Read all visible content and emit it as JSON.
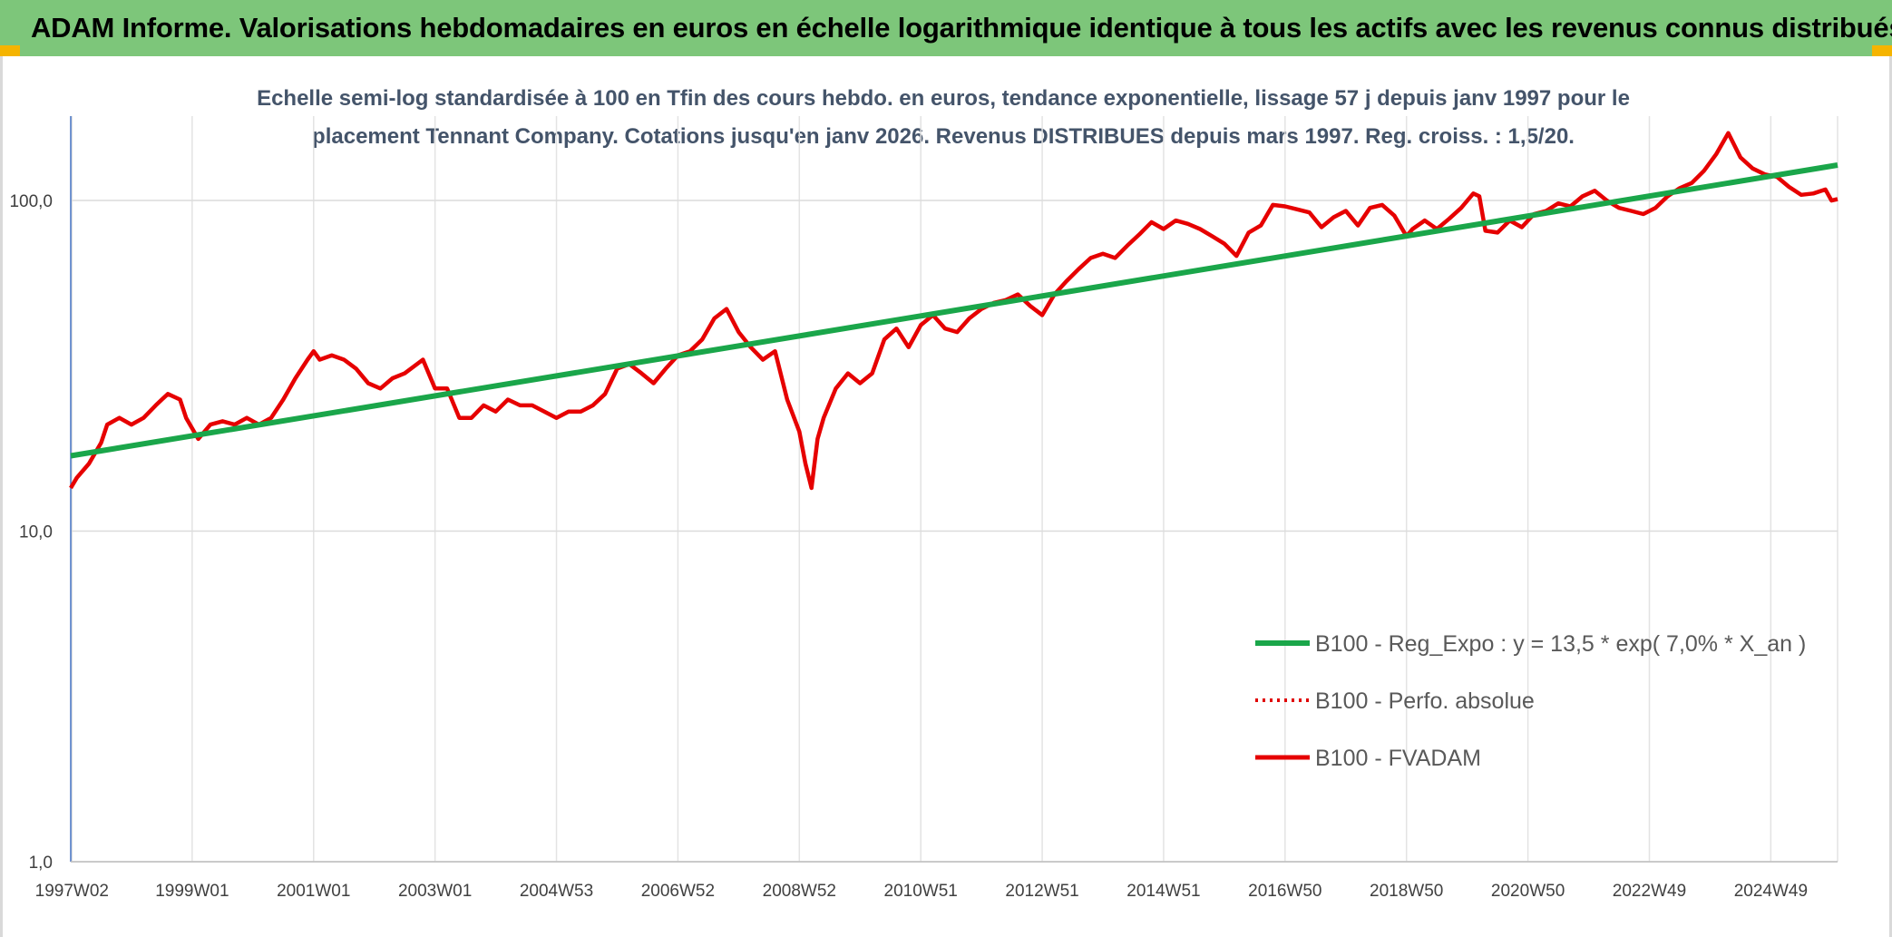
{
  "banner": {
    "title": "ADAM Informe. Valorisations hebdomadaires en euros en échelle logarithmique identique à tous les actifs avec les revenus connus distribués"
  },
  "chart_data": {
    "type": "line",
    "title_line1": "Echelle semi-log standardisée à 100 en Tfin des cours hebdo. en euros, tendance exponentielle, lissage 57 j depuis janv 1997 pour le",
    "title_line2": "placement Tennant Company. Cotations jusqu'en janv 2026. Revenus DISTRIBUES depuis mars 1997. Reg. croiss. : 1,5/20.",
    "y_scale": "log",
    "ylim": [
      1,
      180
    ],
    "y_ticks": [
      {
        "value": 100,
        "label": "100,0"
      },
      {
        "value": 10,
        "label": "10,0"
      },
      {
        "value": 1,
        "label": "1,0"
      }
    ],
    "x_range": [
      1997.0,
      2026.1
    ],
    "x_tick_labels": [
      "1997W02",
      "1999W01",
      "2001W01",
      "2003W01",
      "2004W53",
      "2006W52",
      "2008W52",
      "2010W51",
      "2012W51",
      "2014W51",
      "2016W50",
      "2018W50",
      "2020W50",
      "2022W49",
      "2024W49"
    ],
    "x_tick_years": [
      1997.02,
      1999.0,
      2001.0,
      2003.0,
      2005.0,
      2007.0,
      2009.0,
      2011.0,
      2013.0,
      2015.0,
      2017.0,
      2019.0,
      2021.0,
      2023.0,
      2025.0
    ],
    "grid": "vertical",
    "legend_position": "bottom-right",
    "series": [
      {
        "name": "B100 - Reg_Expo : y = 13,5 * exp( 7,0% *  X_an )",
        "color": "#1aa64a",
        "style": "solid",
        "x": [
          1997.0,
          2026.1
        ],
        "values": [
          16.9,
          128
        ]
      },
      {
        "name": "B100 - Perfo. absolue",
        "color": "#e00000",
        "style": "dotted",
        "x": [],
        "values": []
      },
      {
        "name": "B100 - FVADAM",
        "color": "#e60000",
        "style": "solid",
        "x": [
          1997.0,
          1997.1,
          1997.3,
          1997.5,
          1997.6,
          1997.8,
          1998.0,
          1998.2,
          1998.4,
          1998.5,
          1998.6,
          1998.8,
          1998.9,
          1999.1,
          1999.3,
          1999.5,
          1999.7,
          1999.9,
          2000.1,
          2000.3,
          2000.5,
          2000.7,
          2000.9,
          2001.0,
          2001.1,
          2001.3,
          2001.5,
          2001.7,
          2001.9,
          2002.1,
          2002.3,
          2002.5,
          2002.8,
          2003.0,
          2003.2,
          2003.4,
          2003.6,
          2003.8,
          2004.0,
          2004.2,
          2004.4,
          2004.6,
          2004.8,
          2005.0,
          2005.2,
          2005.4,
          2005.6,
          2005.8,
          2006.0,
          2006.2,
          2006.4,
          2006.6,
          2006.8,
          2007.0,
          2007.2,
          2007.4,
          2007.6,
          2007.8,
          2008.0,
          2008.2,
          2008.4,
          2008.6,
          2008.8,
          2009.0,
          2009.1,
          2009.2,
          2009.3,
          2009.4,
          2009.6,
          2009.8,
          2010.0,
          2010.2,
          2010.4,
          2010.6,
          2010.8,
          2011.0,
          2011.2,
          2011.4,
          2011.6,
          2011.8,
          2012.0,
          2012.2,
          2012.4,
          2012.6,
          2012.8,
          2013.0,
          2013.2,
          2013.4,
          2013.6,
          2013.8,
          2014.0,
          2014.2,
          2014.4,
          2014.6,
          2014.8,
          2015.0,
          2015.2,
          2015.4,
          2015.6,
          2015.8,
          2016.0,
          2016.2,
          2016.4,
          2016.6,
          2016.8,
          2017.0,
          2017.2,
          2017.4,
          2017.6,
          2017.8,
          2018.0,
          2018.2,
          2018.4,
          2018.6,
          2018.8,
          2019.0,
          2019.1,
          2019.3,
          2019.5,
          2019.7,
          2019.9,
          2020.1,
          2020.2,
          2020.3,
          2020.5,
          2020.7,
          2020.9,
          2021.1,
          2021.3,
          2021.5,
          2021.7,
          2021.9,
          2022.1,
          2022.3,
          2022.5,
          2022.7,
          2022.9,
          2023.1,
          2023.3,
          2023.5,
          2023.7,
          2023.9,
          2024.1,
          2024.3,
          2024.5,
          2024.7,
          2024.9,
          2025.1,
          2025.3,
          2025.5,
          2025.7,
          2025.9,
          2026.0,
          2026.1
        ],
        "values": [
          13.5,
          14.5,
          16,
          18.5,
          21,
          22,
          21,
          22,
          24,
          25,
          26,
          25,
          22,
          19,
          21,
          21.5,
          21,
          22,
          21,
          22,
          25,
          29,
          33,
          35,
          33,
          34,
          33,
          31,
          28,
          27,
          29,
          30,
          33,
          27,
          27,
          22,
          22,
          24,
          23,
          25,
          24,
          24,
          23,
          22,
          23,
          23,
          24,
          26,
          31,
          32,
          30,
          28,
          31,
          34,
          35,
          38,
          44,
          47,
          40,
          36,
          33,
          35,
          25,
          20,
          16,
          13.5,
          19,
          22,
          27,
          30,
          28,
          30,
          38,
          41,
          36,
          42,
          45,
          41,
          40,
          44,
          47,
          49,
          50,
          52,
          48,
          45,
          52,
          57,
          62,
          67,
          69,
          67,
          73,
          79,
          86,
          82,
          87,
          85,
          82,
          78,
          74,
          68,
          80,
          84,
          97,
          96,
          94,
          92,
          83,
          89,
          93,
          84,
          95,
          97,
          90,
          78,
          82,
          87,
          82,
          88,
          95,
          105,
          103,
          81,
          80,
          87,
          83,
          91,
          93,
          98,
          96,
          103,
          107,
          100,
          95,
          93,
          91,
          95,
          103,
          109,
          113,
          123,
          138,
          160,
          135,
          125,
          120,
          118,
          110,
          104,
          105,
          108,
          100,
          101
        ]
      }
    ]
  }
}
